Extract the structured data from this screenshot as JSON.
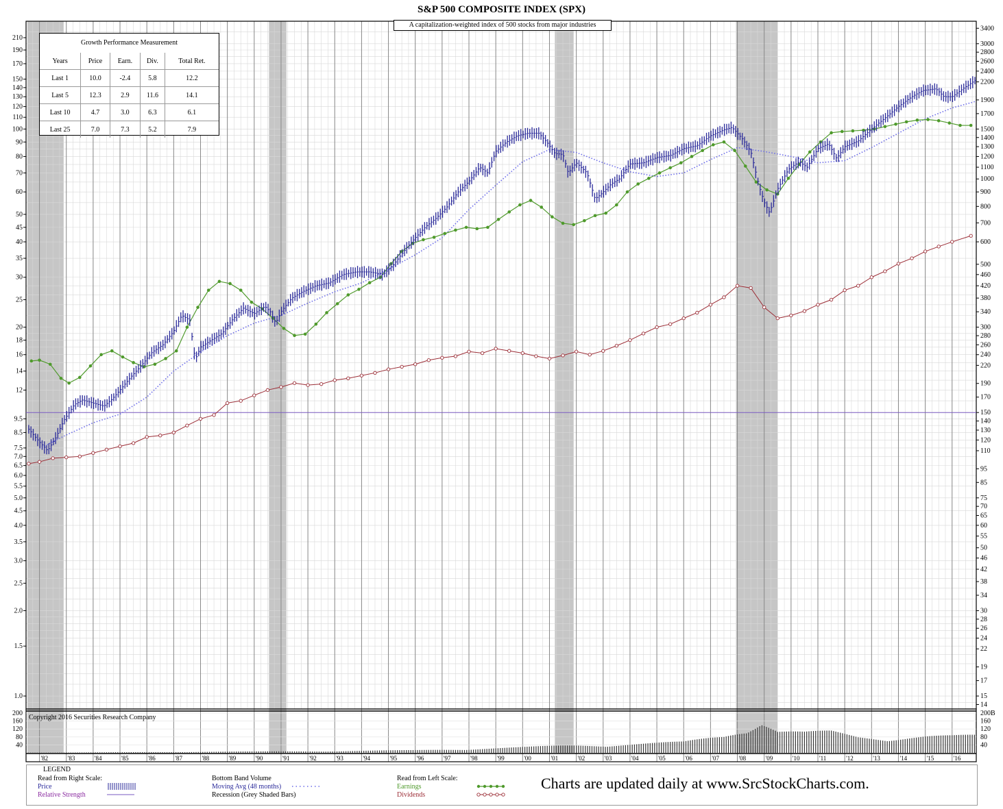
{
  "title": "S&P 500 COMPOSITE INDEX (SPX)",
  "subtitle": "A capitalization-weighted index of 500 stocks from major industries",
  "copyright": "Copyright 2016 Securities Research Company",
  "growth_table": {
    "title": "Growth Performance Measurement",
    "headers": [
      "Years",
      "Price",
      "Earn.",
      "Div.",
      "Total Ret."
    ],
    "rows": [
      [
        "Last 1",
        "10.0",
        "-2.4",
        "5.8",
        "12.2"
      ],
      [
        "Last 5",
        "12.3",
        "2.9",
        "11.6",
        "14.1"
      ],
      [
        "Last 10",
        "4.7",
        "3.0",
        "6.3",
        "6.1"
      ],
      [
        "Last 25",
        "7.0",
        "7.3",
        "5.2",
        "7.9"
      ]
    ]
  },
  "legend": {
    "title": "LEGEND",
    "right_scale_heading": "Read from Right Scale:",
    "price": "Price",
    "relative_strength": "Relative Strength",
    "volume": "Bottom Band Volume",
    "moving_avg": "Moving Avg (48 months)",
    "recession": "Recession (Grey Shaded Bars)",
    "left_scale_heading": "Read from Left Scale:",
    "earnings": "Earnings",
    "dividends": "Dividends",
    "promo": "Charts are updated daily at www.SrcStockCharts.com."
  },
  "colors": {
    "price": "#2a2a9a",
    "moving_avg": "#6a6ae8",
    "earnings": "#4f9a2c",
    "dividends": "#9b2c35",
    "relative_strength": "#7a5ac0",
    "recession": "#c6c6c6",
    "volume": "#333333"
  },
  "chart_data": {
    "type": "line",
    "x_tick_labels": [
      "'82",
      "'83",
      "'84",
      "'85",
      "'86",
      "'87",
      "'88",
      "'89",
      "'90",
      "'91",
      "'92",
      "'93",
      "'94",
      "'95",
      "'96",
      "'97",
      "'98",
      "'99",
      "'00",
      "'01",
      "'02",
      "'03",
      "'04",
      "'05",
      "'06",
      "'07",
      "'08",
      "'09",
      "'10",
      "'11",
      "'12",
      "'13",
      "'14",
      "'15",
      "'16"
    ],
    "x_range": [
      1981.5,
      2016.9
    ],
    "left_axis": {
      "scale": "log",
      "range": [
        0.9,
        240
      ],
      "tick_labels": [
        "1.0",
        "1.5",
        "2.0",
        "2.5",
        "3.0",
        "3.5",
        "4.0",
        "4.5",
        "5.0",
        "5.5",
        "6.0",
        "6.5",
        "7.0",
        "7.5",
        "8.5",
        "9.5",
        "12",
        "14",
        "16",
        "18",
        "20",
        "25",
        "30",
        "35",
        "40",
        "45",
        "50",
        "60",
        "70",
        "80",
        "90",
        "100",
        "110",
        "120",
        "130",
        "140",
        "150",
        "170",
        "190",
        "210"
      ]
    },
    "right_axis": {
      "scale": "log",
      "range": [
        13.5,
        3600
      ],
      "tick_labels": [
        "14",
        "15",
        "17",
        "19",
        "22",
        "24",
        "26",
        "28",
        "30",
        "34",
        "38",
        "42",
        "46",
        "50",
        "55",
        "60",
        "65",
        "70",
        "75",
        "85",
        "95",
        "110",
        "120",
        "130",
        "140",
        "150",
        "170",
        "190",
        "220",
        "240",
        "260",
        "280",
        "300",
        "340",
        "380",
        "420",
        "460",
        "500",
        "600",
        "700",
        "800",
        "900",
        "1000",
        "1100",
        "1200",
        "1300",
        "1400",
        "1500",
        "1700",
        "1900",
        "2200",
        "2400",
        "2600",
        "2800",
        "3000",
        "3400"
      ]
    },
    "volume_axis": {
      "range": [
        0,
        200
      ],
      "tick_labels_left": [
        "40",
        "80",
        "120",
        "160",
        "200"
      ],
      "tick_labels_right": [
        "40",
        "80",
        "120",
        "160",
        "200B"
      ]
    },
    "recessions": [
      [
        1981.55,
        1982.9
      ],
      [
        1990.55,
        1991.2
      ],
      [
        2001.2,
        2001.9
      ],
      [
        2007.95,
        2009.5
      ]
    ],
    "series": [
      {
        "name": "Price",
        "scale": "right",
        "x": [
          1981.6,
          1982.0,
          1982.3,
          1982.6,
          1982.9,
          1983.3,
          1983.6,
          1984.0,
          1984.4,
          1984.7,
          1985.0,
          1985.4,
          1985.8,
          1986.2,
          1986.6,
          1987.0,
          1987.3,
          1987.6,
          1987.8,
          1988.0,
          1988.4,
          1988.8,
          1989.2,
          1989.6,
          1990.0,
          1990.4,
          1990.6,
          1990.8,
          1991.0,
          1991.4,
          1991.8,
          1992.3,
          1992.8,
          1993.3,
          1993.8,
          1994.3,
          1994.8,
          1995.2,
          1995.6,
          1996.0,
          1996.4,
          1996.8,
          1997.2,
          1997.6,
          1998.0,
          1998.4,
          1998.7,
          1999.0,
          1999.4,
          1999.8,
          2000.2,
          2000.6,
          2000.9,
          2001.2,
          2001.5,
          2001.7,
          2002.0,
          2002.4,
          2002.7,
          2002.9,
          2003.3,
          2003.6,
          2004.0,
          2004.5,
          2005.0,
          2005.5,
          2006.0,
          2006.5,
          2007.0,
          2007.5,
          2007.8,
          2008.2,
          2008.5,
          2008.8,
          2009.0,
          2009.2,
          2009.5,
          2009.9,
          2010.3,
          2010.6,
          2011.0,
          2011.4,
          2011.7,
          2012.0,
          2012.5,
          2013.0,
          2013.5,
          2014.0,
          2014.5,
          2014.9,
          2015.4,
          2015.7,
          2016.0,
          2016.4,
          2016.9
        ],
        "y": [
          131,
          118,
          110,
          122,
          140,
          160,
          166,
          162,
          158,
          167,
          180,
          200,
          220,
          245,
          260,
          290,
          330,
          318,
          230,
          255,
          270,
          285,
          320,
          350,
          335,
          355,
          340,
          310,
          340,
          380,
          400,
          420,
          430,
          460,
          470,
          470,
          460,
          500,
          560,
          620,
          680,
          730,
          800,
          900,
          980,
          1100,
          1050,
          1250,
          1350,
          1420,
          1450,
          1450,
          1350,
          1230,
          1220,
          1050,
          1140,
          1050,
          850,
          880,
          960,
          1000,
          1130,
          1140,
          1190,
          1210,
          1280,
          1310,
          1420,
          1490,
          1520,
          1380,
          1250,
          950,
          830,
          760,
          920,
          1080,
          1150,
          1100,
          1280,
          1330,
          1180,
          1300,
          1360,
          1500,
          1640,
          1800,
          1950,
          2050,
          2080,
          1950,
          1950,
          2080,
          2240
        ]
      },
      {
        "name": "Moving Avg (48 months)",
        "scale": "right",
        "x": [
          1982.0,
          1983.0,
          1984.0,
          1985.0,
          1986.0,
          1987.0,
          1988.0,
          1989.0,
          1990.0,
          1991.0,
          1992.0,
          1993.0,
          1994.0,
          1995.0,
          1996.0,
          1997.0,
          1998.0,
          1999.0,
          2000.0,
          2001.0,
          2002.0,
          2003.0,
          2004.0,
          2005.0,
          2006.0,
          2007.0,
          2008.0,
          2009.0,
          2010.0,
          2011.0,
          2012.0,
          2013.0,
          2014.0,
          2015.0,
          2016.0,
          2016.9
        ],
        "y": [
          112,
          125,
          138,
          148,
          170,
          210,
          245,
          280,
          310,
          330,
          365,
          400,
          430,
          480,
          540,
          620,
          780,
          950,
          1150,
          1270,
          1240,
          1140,
          1060,
          1020,
          1050,
          1170,
          1290,
          1250,
          1200,
          1140,
          1160,
          1290,
          1450,
          1630,
          1780,
          1880
        ]
      },
      {
        "name": "Earnings",
        "scale": "left",
        "x": [
          1981.7,
          1982.0,
          1982.4,
          1982.8,
          1983.1,
          1983.5,
          1983.9,
          1984.3,
          1984.7,
          1985.1,
          1985.5,
          1985.9,
          1986.3,
          1986.7,
          1987.1,
          1987.5,
          1987.9,
          1988.3,
          1988.7,
          1989.1,
          1989.5,
          1989.9,
          1990.3,
          1990.7,
          1991.1,
          1991.5,
          1991.9,
          1992.3,
          1992.7,
          1993.1,
          1993.5,
          1993.9,
          1994.3,
          1994.7,
          1995.1,
          1995.5,
          1995.9,
          1996.3,
          1996.7,
          1997.1,
          1997.5,
          1997.9,
          1998.3,
          1998.7,
          1999.1,
          1999.5,
          1999.9,
          2000.3,
          2000.7,
          2001.1,
          2001.5,
          2001.9,
          2002.3,
          2002.7,
          2003.1,
          2003.5,
          2003.9,
          2004.3,
          2004.7,
          2005.1,
          2005.5,
          2005.9,
          2006.3,
          2006.7,
          2007.1,
          2007.5,
          2007.9,
          2008.3,
          2008.7,
          2009.1,
          2009.5,
          2009.9,
          2010.3,
          2010.7,
          2011.1,
          2011.5,
          2011.9,
          2012.3,
          2012.7,
          2013.1,
          2013.5,
          2013.9,
          2014.3,
          2014.7,
          2015.1,
          2015.5,
          2015.9,
          2016.3,
          2016.7
        ],
        "y": [
          15.2,
          15.3,
          14.8,
          13.2,
          12.7,
          13.3,
          14.6,
          16.0,
          16.5,
          15.7,
          15.0,
          14.5,
          14.8,
          15.5,
          16.5,
          20.0,
          23.5,
          27.0,
          29.0,
          28.5,
          27.0,
          24.5,
          23.2,
          21.5,
          19.8,
          18.7,
          18.9,
          20.5,
          22.5,
          24.2,
          26.0,
          27.2,
          28.7,
          30.0,
          33.5,
          37.0,
          39.5,
          40.7,
          41.5,
          42.8,
          44.0,
          45.0,
          44.5,
          45.0,
          48.0,
          51.0,
          54.0,
          56.0,
          53.0,
          49.0,
          46.5,
          46.0,
          47.5,
          49.5,
          50.5,
          54.0,
          60.0,
          64.0,
          67.0,
          70.0,
          73.0,
          76.0,
          80.0,
          84.0,
          88.0,
          90.0,
          84.0,
          74.0,
          65.0,
          61.0,
          59.0,
          67.0,
          75.0,
          83.0,
          90.0,
          97.0,
          98.0,
          98.5,
          99.0,
          100.0,
          102.0,
          104.0,
          106.0,
          107.5,
          108.0,
          107.0,
          105.0,
          103.0,
          103.0
        ]
      },
      {
        "name": "Dividends",
        "scale": "left",
        "x": [
          1981.6,
          1982.0,
          1982.5,
          1983.0,
          1983.5,
          1984.0,
          1984.5,
          1985.0,
          1985.5,
          1986.0,
          1986.5,
          1987.0,
          1987.5,
          1988.0,
          1988.5,
          1989.0,
          1989.5,
          1990.0,
          1990.5,
          1991.0,
          1991.5,
          1992.0,
          1992.5,
          1993.0,
          1993.5,
          1994.0,
          1994.5,
          1995.0,
          1995.5,
          1996.0,
          1996.5,
          1997.0,
          1997.5,
          1998.0,
          1998.5,
          1999.0,
          1999.5,
          2000.0,
          2000.5,
          2001.0,
          2001.5,
          2002.0,
          2002.5,
          2003.0,
          2003.5,
          2004.0,
          2004.5,
          2005.0,
          2005.5,
          2006.0,
          2006.5,
          2007.0,
          2007.5,
          2008.0,
          2008.5,
          2009.0,
          2009.5,
          2010.0,
          2010.5,
          2011.0,
          2011.5,
          2012.0,
          2012.5,
          2013.0,
          2013.5,
          2014.0,
          2014.5,
          2015.0,
          2015.5,
          2016.0,
          2016.7
        ],
        "y": [
          6.6,
          6.7,
          6.9,
          6.95,
          7.0,
          7.2,
          7.4,
          7.6,
          7.8,
          8.2,
          8.3,
          8.5,
          9.0,
          9.5,
          9.8,
          10.8,
          11.0,
          11.5,
          12.0,
          12.3,
          12.7,
          12.5,
          12.6,
          13.0,
          13.2,
          13.5,
          13.8,
          14.2,
          14.5,
          14.8,
          15.3,
          15.6,
          15.8,
          16.4,
          16.2,
          16.8,
          16.5,
          16.2,
          15.8,
          15.5,
          15.9,
          16.4,
          16.0,
          16.5,
          17.2,
          18.0,
          19.0,
          20.0,
          20.5,
          21.5,
          22.5,
          24.0,
          25.5,
          28.0,
          27.5,
          23.5,
          21.5,
          22.0,
          22.8,
          24.0,
          25.0,
          27.0,
          28.0,
          30.0,
          31.5,
          33.5,
          35.0,
          37.0,
          38.5,
          40.0,
          42.0
        ]
      },
      {
        "name": "Relative Strength",
        "scale": "right",
        "x": [
          1981.5,
          2016.9
        ],
        "y": [
          150,
          150
        ]
      }
    ],
    "volume": {
      "x": [
        1981.5,
        1984.0,
        1987.0,
        1990.0,
        1993.0,
        1996.0,
        1998.0,
        2000.0,
        2002.0,
        2004.0,
        2006.0,
        2007.5,
        2008.3,
        2008.9,
        2009.5,
        2010.5,
        2011.5,
        2012.5,
        2014.0,
        2015.0,
        2016.0,
        2016.9
      ],
      "y": [
        1,
        2,
        4,
        6,
        8,
        12,
        18,
        25,
        35,
        40,
        48,
        80,
        120,
        150,
        100,
        90,
        95,
        75,
        72,
        75,
        74,
        78
      ]
    }
  }
}
